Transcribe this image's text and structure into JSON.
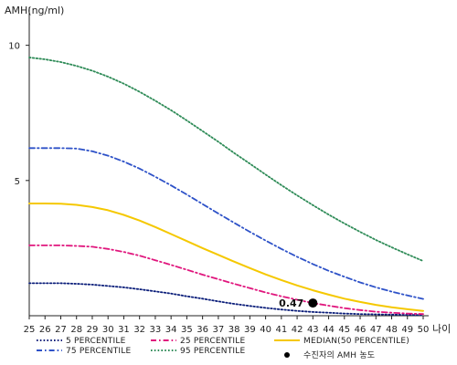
{
  "chart_data": {
    "type": "line",
    "ylabel": "AMH(ng/ml)",
    "xlabel": "나이",
    "x": [
      25,
      26,
      27,
      28,
      29,
      30,
      31,
      32,
      33,
      34,
      35,
      36,
      37,
      38,
      39,
      40,
      41,
      42,
      43,
      44,
      45,
      46,
      47,
      48,
      49,
      50
    ],
    "xlim": [
      25,
      50
    ],
    "ylim": [
      0,
      11
    ],
    "yticks": [
      5,
      10
    ],
    "grid": false,
    "legend_position": "bottom",
    "series": [
      {
        "name": "5 PERCENTILE",
        "color": "#0b1e7a",
        "style": "dotted",
        "values": [
          1.2,
          1.2,
          1.2,
          1.18,
          1.15,
          1.1,
          1.05,
          0.98,
          0.9,
          0.82,
          0.72,
          0.63,
          0.53,
          0.44,
          0.36,
          0.29,
          0.23,
          0.18,
          0.14,
          0.11,
          0.08,
          0.06,
          0.05,
          0.04,
          0.03,
          0.02
        ]
      },
      {
        "name": "25 PERCENTILE",
        "color": "#e0167d",
        "style": "dashdot",
        "values": [
          2.6,
          2.6,
          2.6,
          2.58,
          2.55,
          2.47,
          2.36,
          2.22,
          2.05,
          1.88,
          1.7,
          1.52,
          1.35,
          1.18,
          1.02,
          0.86,
          0.72,
          0.59,
          0.47,
          0.37,
          0.28,
          0.21,
          0.15,
          0.11,
          0.08,
          0.06
        ]
      },
      {
        "name": "MEDIAN(50 PERCENTILE)",
        "color": "#f5c800",
        "style": "solid",
        "values": [
          4.15,
          4.15,
          4.14,
          4.1,
          4.02,
          3.9,
          3.73,
          3.52,
          3.28,
          3.02,
          2.76,
          2.5,
          2.25,
          2.0,
          1.76,
          1.53,
          1.32,
          1.12,
          0.94,
          0.78,
          0.63,
          0.51,
          0.4,
          0.31,
          0.24,
          0.18
        ]
      },
      {
        "name": "75 PERCENTILE",
        "color": "#2e52c8",
        "style": "dashdot",
        "values": [
          6.2,
          6.2,
          6.2,
          6.18,
          6.08,
          5.92,
          5.7,
          5.44,
          5.14,
          4.82,
          4.48,
          4.13,
          3.78,
          3.44,
          3.1,
          2.78,
          2.47,
          2.18,
          1.91,
          1.66,
          1.44,
          1.23,
          1.05,
          0.89,
          0.75,
          0.62
        ]
      },
      {
        "name": "95 PERCENTILE",
        "color": "#2e8b57",
        "style": "dotted",
        "values": [
          9.55,
          9.48,
          9.38,
          9.24,
          9.06,
          8.84,
          8.58,
          8.28,
          7.95,
          7.6,
          7.22,
          6.83,
          6.43,
          6.02,
          5.62,
          5.22,
          4.83,
          4.45,
          4.09,
          3.74,
          3.41,
          3.1,
          2.8,
          2.53,
          2.27,
          2.02
        ]
      }
    ],
    "marker": {
      "name": "수진자의 AMH 농도",
      "x": 43,
      "y": 0.47,
      "label": "0.47",
      "color": "#000000"
    }
  }
}
